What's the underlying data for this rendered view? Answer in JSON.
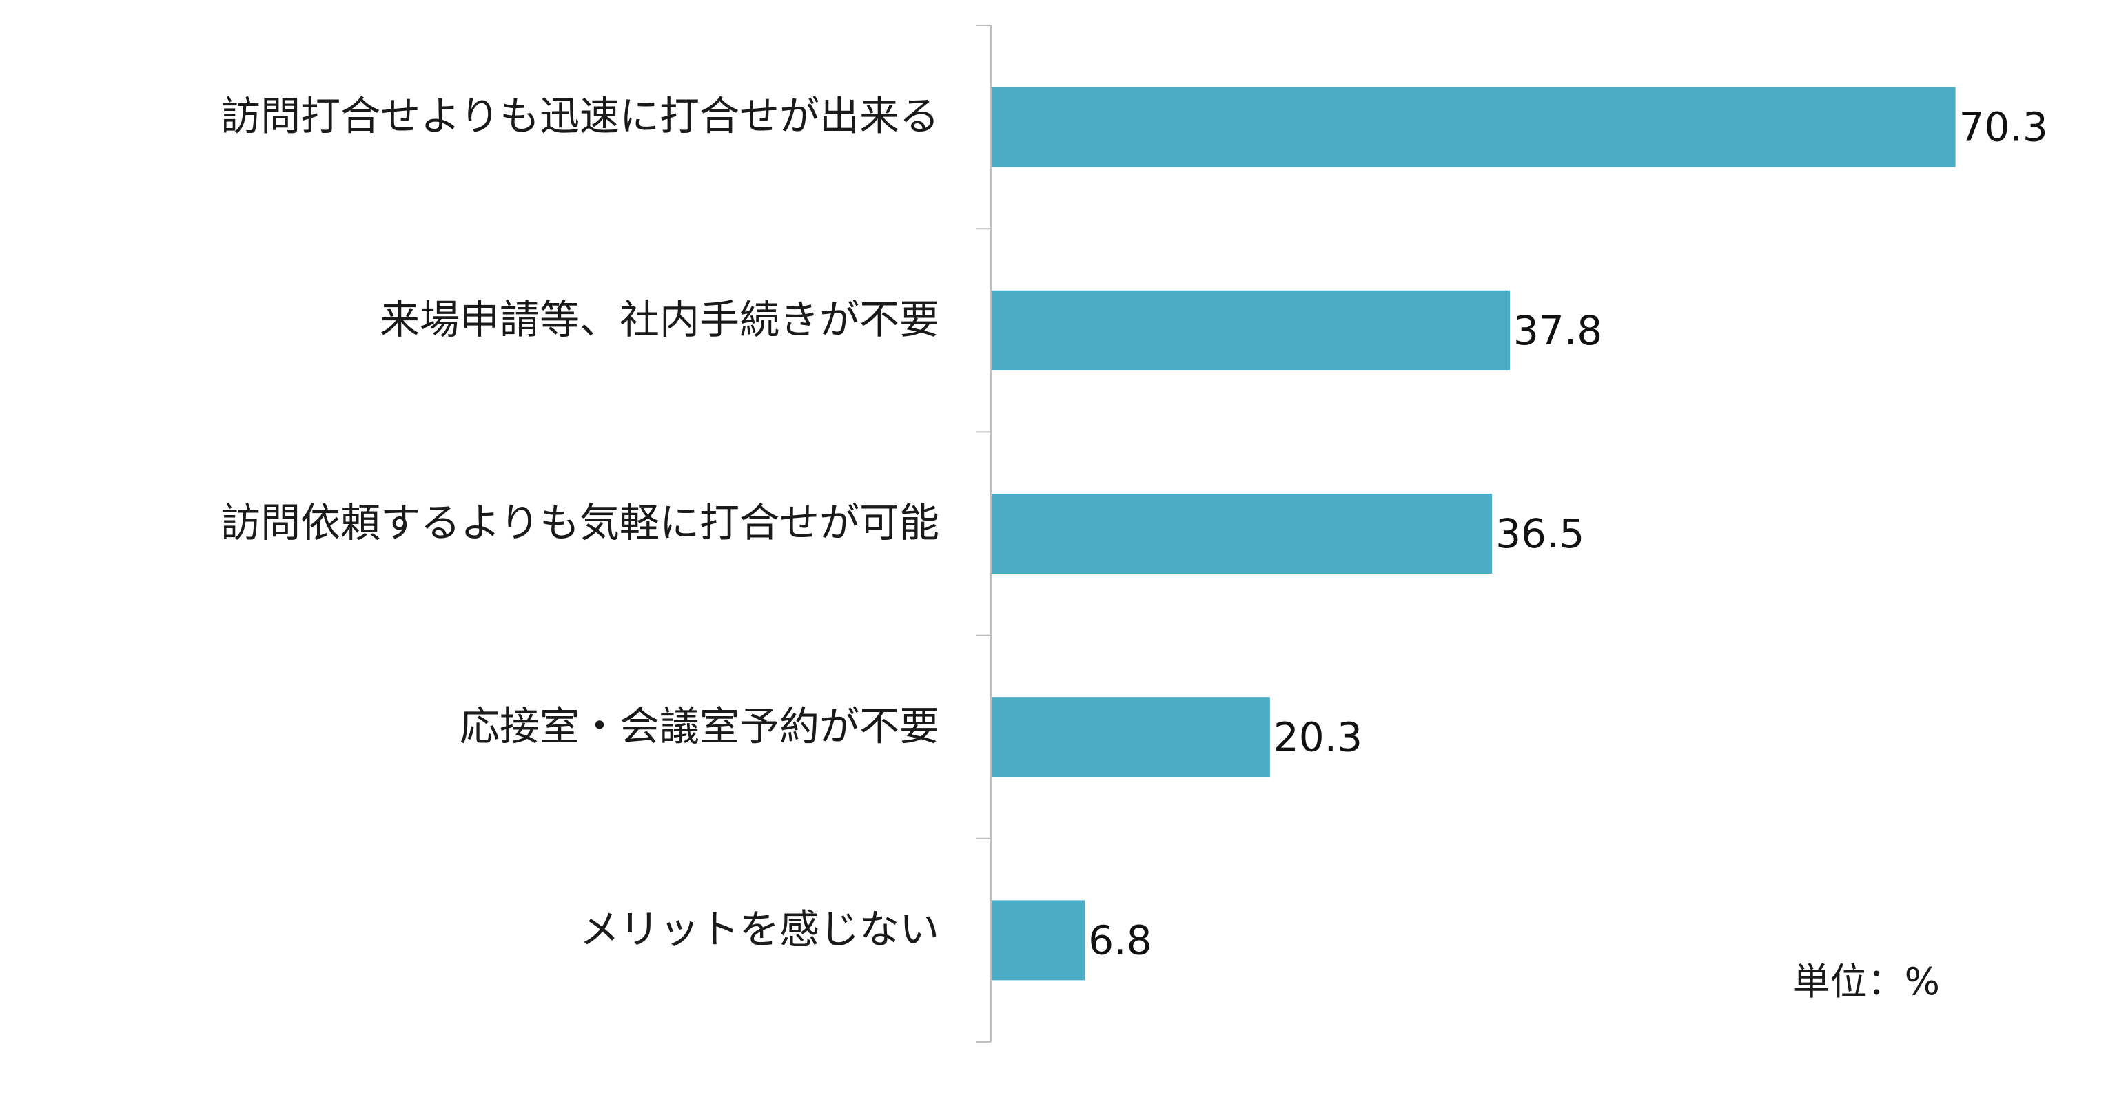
{
  "chart_data": {
    "type": "bar",
    "orientation": "horizontal",
    "categories": [
      "訪問打合せよりも迅速に打合せが出来る",
      "来場申請等、社内手続きが不要",
      "訪問依頼するよりも気軽に打合せが可能",
      "応接室・会議室予約が不要",
      "メリットを感じない"
    ],
    "values": [
      70.3,
      37.8,
      36.5,
      20.3,
      6.8
    ],
    "value_labels": [
      "70.3",
      "37.8",
      "36.5",
      "20.3",
      "6.8"
    ],
    "xlim": [
      0,
      76
    ],
    "unit_label": "単位：%",
    "bar_color": "#4BACC6",
    "axis_color": "#BFBFBF",
    "grid": false,
    "legend": "none"
  }
}
